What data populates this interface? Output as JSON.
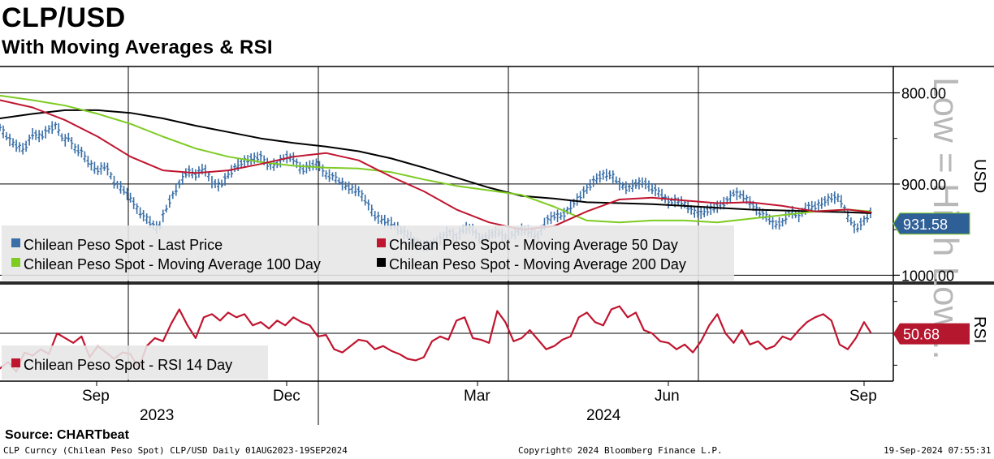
{
  "chart_data": {
    "type": "line",
    "title": "CLP/USD",
    "subtitle": "With Moving Averages & RSI",
    "watermark": "Low = High Low...",
    "price_panel": {
      "ylabel": "USD",
      "y_inverted": true,
      "ylim": [
        780,
        1005
      ],
      "yticks": [
        "800.00",
        "900.00",
        "1000.00"
      ],
      "last_value_label": "931.58",
      "legend": [
        {
          "label": "Chilean Peso Spot - Last Price",
          "color": "#3a6fa8"
        },
        {
          "label": "Chilean Peso Spot - Moving Average 50 Day",
          "color": "#c0152f"
        },
        {
          "label": "Chilean Peso Spot - Moving Average 100 Day",
          "color": "#7ecb22"
        },
        {
          "label": "Chilean Peso Spot - Moving Average 200 Day",
          "color": "#000000"
        }
      ],
      "series": {
        "last_price": {
          "t": [
            0,
            10,
            20,
            30,
            40,
            50,
            60,
            70,
            75,
            80,
            85,
            90,
            100,
            110,
            120,
            130,
            140,
            150,
            160,
            170,
            180,
            190,
            195,
            200,
            210,
            220,
            230,
            240,
            250,
            260,
            270,
            280,
            290,
            300,
            310,
            320,
            330,
            340,
            350,
            360,
            370,
            380,
            390,
            400,
            410,
            420,
            430,
            440,
            450,
            460,
            470,
            480,
            490,
            500,
            510,
            520,
            530,
            540,
            550,
            560,
            570,
            580,
            590,
            600,
            610,
            620,
            630,
            640,
            650,
            660,
            670,
            680,
            690,
            700,
            710,
            720,
            730,
            740,
            750,
            760,
            770,
            780,
            790,
            800,
            810,
            820,
            830,
            840,
            850,
            860,
            870,
            880,
            890,
            900,
            910,
            920,
            930,
            940,
            950,
            960,
            970,
            980,
            990,
            1000,
            1010,
            1020,
            1030,
            1040,
            1050,
            1060,
            1068
          ],
          "v": [
            838,
            850,
            858,
            862,
            845,
            848,
            840,
            835,
            848,
            852,
            848,
            860,
            865,
            878,
            885,
            880,
            898,
            905,
            915,
            930,
            938,
            947,
            948,
            935,
            915,
            900,
            885,
            890,
            882,
            898,
            902,
            890,
            880,
            875,
            872,
            870,
            880,
            878,
            870,
            872,
            885,
            880,
            878,
            890,
            892,
            900,
            905,
            908,
            920,
            935,
            940,
            943,
            950,
            955,
            965,
            968,
            967,
            960,
            952,
            958,
            948,
            950,
            962,
            956,
            952,
            958,
            955,
            950,
            952,
            958,
            940,
            935,
            935,
            925,
            915,
            905,
            895,
            890,
            890,
            900,
            905,
            900,
            898,
            905,
            910,
            920,
            918,
            922,
            930,
            932,
            928,
            925,
            920,
            910,
            912,
            920,
            930,
            935,
            945,
            942,
            930,
            935,
            925,
            925,
            920,
            915,
            915,
            935,
            950,
            940,
            931.58
          ]
        },
        "ma50": {
          "t": [
            0,
            40,
            80,
            120,
            160,
            200,
            240,
            280,
            320,
            360,
            400,
            440,
            480,
            520,
            560,
            600,
            640,
            680,
            720,
            760,
            800,
            840,
            880,
            920,
            960,
            1000,
            1040,
            1068
          ],
          "v": [
            808,
            816,
            830,
            848,
            870,
            885,
            888,
            885,
            878,
            870,
            866,
            874,
            892,
            908,
            928,
            942,
            950,
            946,
            930,
            917,
            915,
            918,
            921,
            920,
            924,
            930,
            928,
            931
          ]
        },
        "ma100": {
          "t": [
            0,
            40,
            80,
            120,
            160,
            200,
            240,
            280,
            320,
            360,
            400,
            440,
            480,
            520,
            560,
            600,
            640,
            680,
            720,
            760,
            800,
            840,
            880,
            920,
            960,
            1000,
            1040,
            1068
          ],
          "v": [
            803,
            808,
            814,
            823,
            834,
            848,
            861,
            870,
            876,
            880,
            882,
            883,
            887,
            895,
            902,
            907,
            912,
            925,
            940,
            942,
            940,
            940,
            942,
            938,
            934,
            930,
            928,
            930
          ]
        },
        "ma200": {
          "t": [
            0,
            40,
            80,
            120,
            160,
            200,
            240,
            280,
            320,
            360,
            400,
            440,
            480,
            520,
            560,
            600,
            640,
            680,
            720,
            760,
            800,
            840,
            880,
            920,
            960,
            1000,
            1040,
            1068
          ],
          "v": [
            828,
            823,
            819,
            819,
            822,
            828,
            836,
            843,
            850,
            855,
            859,
            864,
            872,
            882,
            893,
            904,
            913,
            916,
            920,
            921,
            922,
            924,
            926,
            928,
            929,
            930,
            931,
            932
          ]
        }
      }
    },
    "rsi_panel": {
      "ylabel": "RSI",
      "ylim": [
        20,
        80
      ],
      "last_value_label": "50.68",
      "legend": [
        {
          "label": "Chilean Peso Spot - RSI 14 Day",
          "color": "#c0152f"
        }
      ],
      "series": {
        "rsi14": {
          "t": [
            0,
            10,
            20,
            30,
            40,
            50,
            60,
            70,
            80,
            90,
            100,
            110,
            120,
            130,
            140,
            150,
            160,
            170,
            180,
            190,
            200,
            210,
            220,
            230,
            240,
            250,
            260,
            270,
            280,
            290,
            300,
            310,
            320,
            330,
            340,
            350,
            360,
            370,
            380,
            390,
            400,
            410,
            420,
            430,
            440,
            450,
            460,
            470,
            480,
            490,
            500,
            510,
            520,
            530,
            540,
            550,
            560,
            570,
            580,
            590,
            600,
            610,
            620,
            630,
            640,
            650,
            660,
            670,
            680,
            690,
            700,
            710,
            720,
            730,
            740,
            750,
            760,
            770,
            780,
            790,
            800,
            810,
            820,
            830,
            840,
            850,
            860,
            870,
            880,
            890,
            900,
            910,
            920,
            930,
            940,
            950,
            960,
            970,
            980,
            990,
            1000,
            1010,
            1020,
            1030,
            1040,
            1050,
            1060,
            1068
          ],
          "v": [
            28,
            32,
            26,
            38,
            36,
            40,
            37,
            50,
            47,
            44,
            48,
            35,
            42,
            38,
            34,
            38,
            37,
            28,
            42,
            47,
            45,
            56,
            65,
            55,
            47,
            60,
            62,
            58,
            63,
            60,
            62,
            55,
            57,
            53,
            58,
            55,
            60,
            57,
            55,
            48,
            49,
            40,
            38,
            42,
            46,
            45,
            40,
            42,
            39,
            37,
            34,
            33,
            35,
            45,
            48,
            46,
            58,
            60,
            47,
            46,
            44,
            64,
            57,
            45,
            47,
            52,
            46,
            40,
            42,
            46,
            48,
            60,
            63,
            57,
            55,
            65,
            67,
            60,
            63,
            52,
            50,
            45,
            44,
            40,
            43,
            38,
            45,
            55,
            62,
            50,
            44,
            52,
            43,
            45,
            40,
            42,
            48,
            46,
            52,
            57,
            60,
            62,
            58,
            43,
            40,
            47,
            57,
            50.68
          ]
        }
      }
    },
    "x_axis": {
      "tick_labels": [
        "Sep",
        "Dec",
        "Mar",
        "Jun",
        "Sep"
      ],
      "year_labels": [
        "2023",
        "2024"
      ]
    }
  },
  "footer": {
    "source": "Source:  CHARTbeat",
    "left": "CLP Curncy (Chilean Peso Spot) CLP/USD  Daily 01AUG2023-19SEP2024",
    "middle": "Copyright© 2024 Bloomberg Finance L.P.",
    "right": "19-Sep-2024 07:55:31"
  },
  "colors": {
    "price": "#3a6fa8",
    "ma50": "#c0152f",
    "ma100": "#7ecb22",
    "ma200": "#000000",
    "rsi": "#c0152f",
    "last_price_tag": "#2f5f97",
    "rsi_tag": "#b5172f"
  }
}
